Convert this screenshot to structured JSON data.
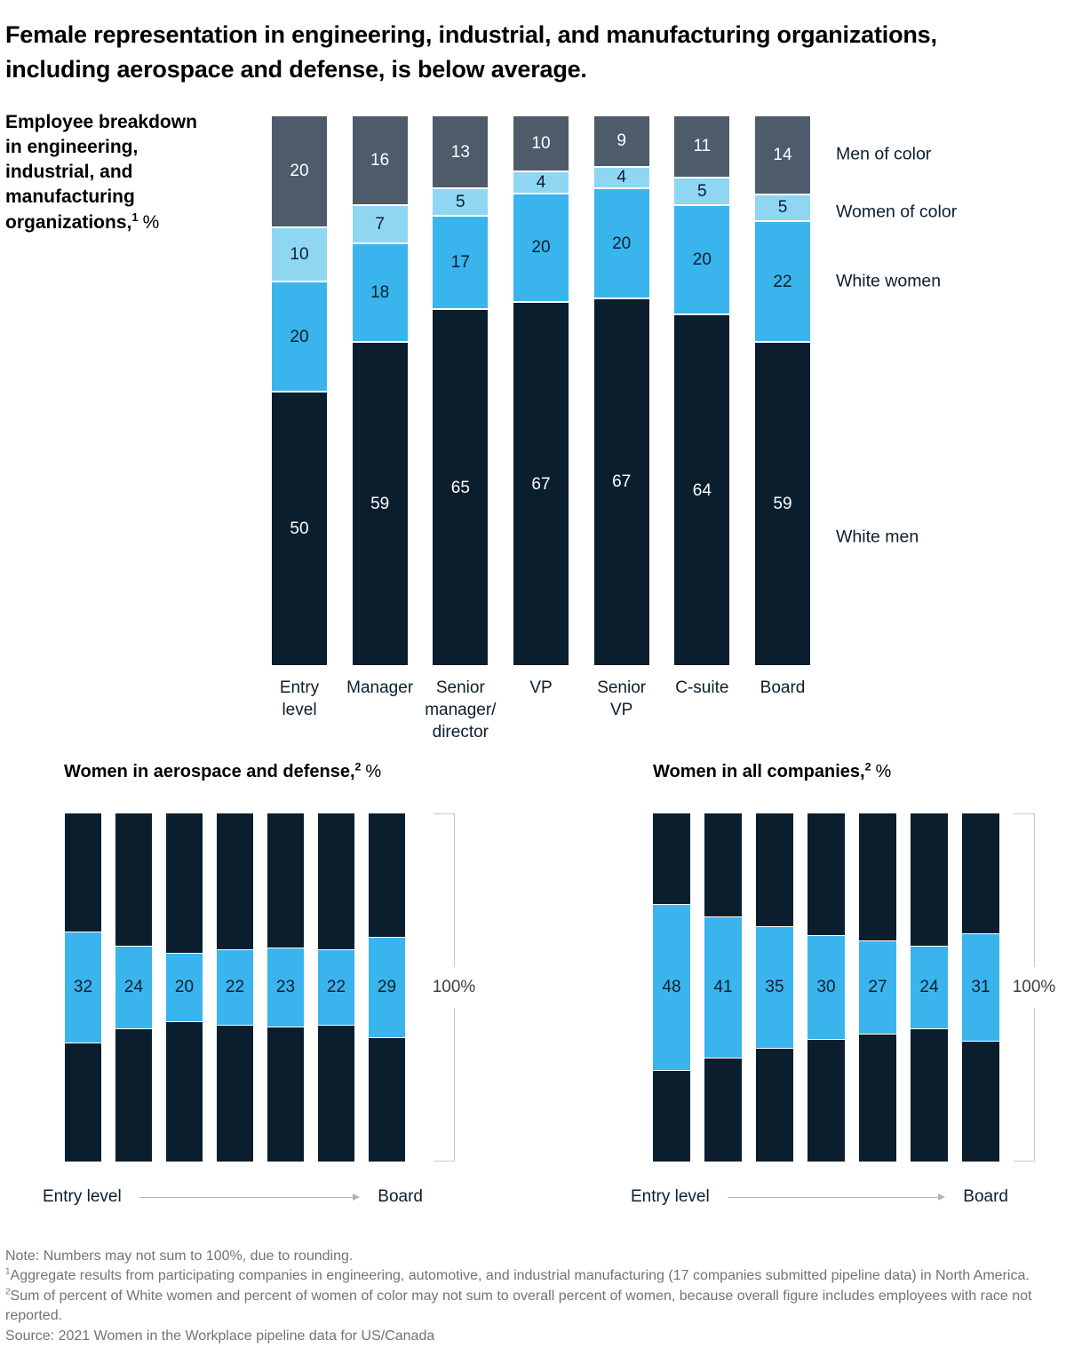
{
  "title": "Female representation in engineering, industrial, and manufacturing organizations, including aerospace and defense, is below average.",
  "main_chart": {
    "y_label_lines": [
      "Employee breakdown",
      "in engineering,",
      "industrial, and",
      "manufacturing"
    ],
    "y_label_final": "organizations,",
    "y_label_sup": "1",
    "y_label_unit": "%"
  },
  "chart_data": [
    {
      "id": "employee-breakdown-pipeline",
      "type": "bar",
      "stacked": true,
      "title": "Employee breakdown in engineering, industrial, and manufacturing organizations, %",
      "categories": [
        "Entry\nlevel",
        "Manager",
        "Senior\nmanager/\ndirector",
        "VP",
        "Senior\nVP",
        "C-suite",
        "Board"
      ],
      "ylim": [
        0,
        100
      ],
      "grid": false,
      "legend_position": "right",
      "series": [
        {
          "name": "Men of color",
          "color": "#4d5b6b",
          "label_color": "#ffffff",
          "values": [
            20,
            16,
            13,
            10,
            9,
            11,
            14
          ]
        },
        {
          "name": "Women of color",
          "color": "#8fd6f3",
          "label_color": "#0a1e2e",
          "values": [
            10,
            7,
            5,
            4,
            4,
            5,
            5
          ]
        },
        {
          "name": "White women",
          "color": "#3ab4ec",
          "label_color": "#0a1e2e",
          "values": [
            20,
            18,
            17,
            20,
            20,
            20,
            22
          ]
        },
        {
          "name": "White men",
          "color": "#0a1e2e",
          "label_color": "#ffffff",
          "values": [
            50,
            59,
            65,
            67,
            67,
            64,
            59
          ]
        }
      ]
    },
    {
      "id": "women-in-aerospace-and-defense",
      "type": "bar",
      "subtype": "centered-share-band",
      "title": "Women in aerospace and defense,",
      "title_sup": "2",
      "title_unit": "%",
      "values": [
        32,
        24,
        20,
        22,
        23,
        22,
        29
      ],
      "bar_color": "#0a1e2e",
      "band_color": "#3ab4ec",
      "scale_label": "100%",
      "axis_start": "Entry level",
      "axis_end": "Board"
    },
    {
      "id": "women-in-all-companies",
      "type": "bar",
      "subtype": "centered-share-band",
      "title": "Women in all companies,",
      "title_sup": "2",
      "title_unit": "%",
      "values": [
        48,
        41,
        35,
        30,
        27,
        24,
        31
      ],
      "bar_color": "#0a1e2e",
      "band_color": "#3ab4ec",
      "scale_label": "100%",
      "axis_start": "Entry level",
      "axis_end": "Board"
    }
  ],
  "footnotes": [
    {
      "sup": "",
      "text": "Note: Numbers may not sum to 100%, due to rounding."
    },
    {
      "sup": "1",
      "text": "Aggregate results from participating companies in engineering, automotive, and industrial manufacturing (17 companies submitted pipeline data) in North America."
    },
    {
      "sup": "2",
      "text": "Sum of percent of White women and percent of women of color may not sum to overall percent of women, because overall figure includes employees with race not reported."
    },
    {
      "sup": "",
      "text": "Source: 2021 Women in the Workplace pipeline data for US/Canada"
    }
  ]
}
